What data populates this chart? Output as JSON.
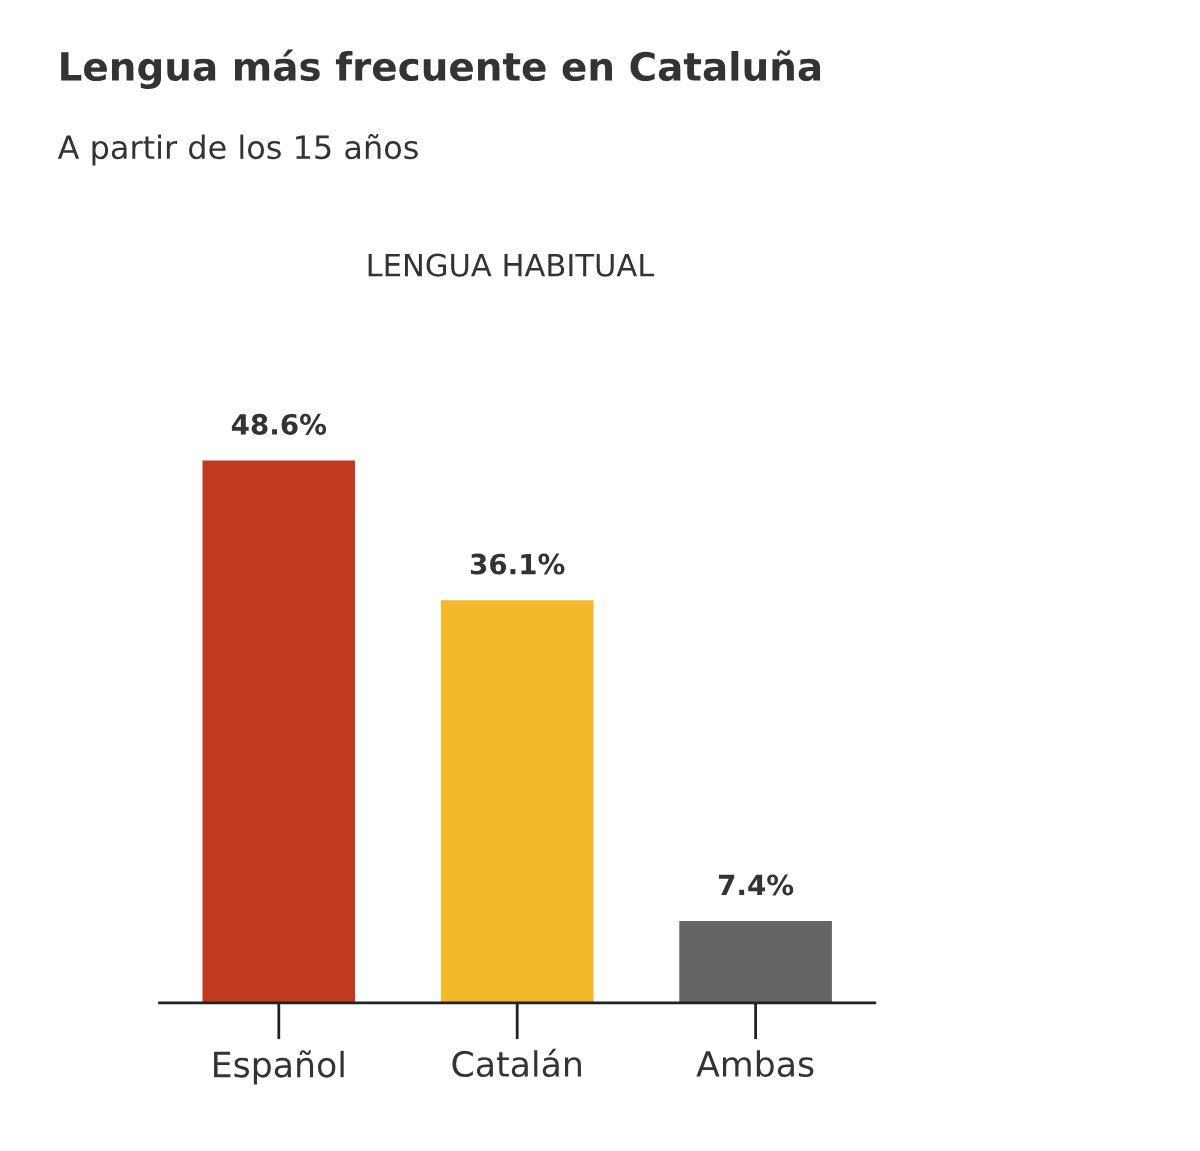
{
  "chart_data": {
    "type": "bar",
    "title": "Lengua más frecuente en Cataluña",
    "subtitle": "A partir de los 15 años",
    "annotations": [
      "LENGUA HABITUAL"
    ],
    "categories": [
      "Español",
      "Catalán",
      "Ambas"
    ],
    "values": [
      48.6,
      36.1,
      7.4
    ],
    "colors": [
      "#c13b20",
      "#f4b92b",
      "#656565"
    ],
    "value_labels": [
      "48.6%",
      "36.1%",
      "7.4%"
    ],
    "grid": false,
    "legend": false,
    "tick_labels": "x"
  }
}
